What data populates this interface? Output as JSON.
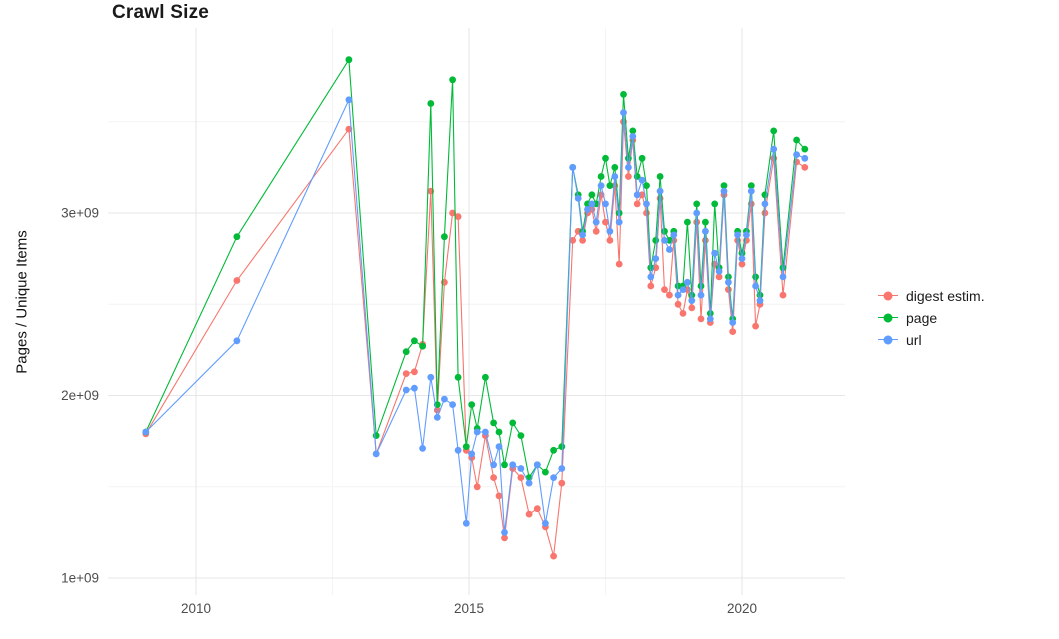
{
  "title": "Crawl Size",
  "background_color": "#ffffff",
  "grid_major_color": "#e7e7e7",
  "grid_minor_color": "#f3f3f3",
  "tick_label_color": "#4d4d4d",
  "y_axis": {
    "label": "Pages / Unique Items",
    "tick_labels": [
      "1e+09",
      "2e+09",
      "3e+09"
    ],
    "tick_values": [
      1,
      2,
      3
    ]
  },
  "x_axis": {
    "label": "",
    "tick_labels": [
      "2010",
      "2015",
      "2020"
    ],
    "tick_values": [
      2010,
      2015,
      2020
    ]
  },
  "legend": {
    "items": [
      {
        "label": "digest estim.",
        "color": "#F8766D"
      },
      {
        "label": "page",
        "color": "#00BA38"
      },
      {
        "label": "url",
        "color": "#619CFF"
      }
    ]
  },
  "chart_data": {
    "type": "line",
    "title": "Crawl Size",
    "xlabel": "",
    "ylabel": "Pages / Unique Items",
    "y_unit": "1e9 (values below are in billions of pages / unique items)",
    "xlim": [
      2008.4,
      2021.9
    ],
    "ylim": [
      0.9,
      4.0
    ],
    "grid": true,
    "legend_position": "right",
    "x": [
      2009.08,
      2010.75,
      2012.8,
      2013.3,
      2013.85,
      2014.0,
      2014.15,
      2014.3,
      2014.42,
      2014.55,
      2014.7,
      2014.8,
      2014.95,
      2015.05,
      2015.15,
      2015.3,
      2015.45,
      2015.55,
      2015.65,
      2015.8,
      2015.95,
      2016.1,
      2016.25,
      2016.4,
      2016.55,
      2016.7,
      2016.9,
      2017.0,
      2017.08,
      2017.17,
      2017.25,
      2017.33,
      2017.42,
      2017.5,
      2017.58,
      2017.67,
      2017.75,
      2017.83,
      2017.92,
      2018.0,
      2018.08,
      2018.17,
      2018.25,
      2018.33,
      2018.42,
      2018.5,
      2018.58,
      2018.67,
      2018.75,
      2018.83,
      2018.92,
      2019.0,
      2019.08,
      2019.17,
      2019.25,
      2019.33,
      2019.42,
      2019.5,
      2019.58,
      2019.67,
      2019.75,
      2019.83,
      2019.92,
      2020.0,
      2020.08,
      2020.17,
      2020.25,
      2020.33,
      2020.42,
      2020.58,
      2020.75,
      2021.0,
      2021.15
    ],
    "series": [
      {
        "name": "digest estim.",
        "color": "#F8766D",
        "values": [
          1.79,
          2.63,
          3.46,
          1.68,
          2.12,
          2.13,
          2.28,
          3.12,
          1.92,
          2.62,
          3.0,
          2.98,
          1.7,
          1.66,
          1.5,
          1.78,
          1.55,
          1.45,
          1.22,
          1.6,
          1.55,
          1.35,
          1.38,
          1.28,
          1.12,
          1.52,
          2.85,
          2.9,
          2.85,
          3.0,
          3.02,
          2.9,
          3.1,
          2.95,
          2.85,
          3.15,
          2.72,
          3.5,
          3.2,
          3.4,
          3.05,
          3.1,
          3.0,
          2.6,
          2.7,
          3.08,
          2.58,
          2.55,
          2.85,
          2.5,
          2.45,
          2.58,
          2.48,
          2.95,
          2.42,
          2.85,
          2.4,
          2.72,
          2.65,
          3.1,
          2.58,
          2.35,
          2.85,
          2.72,
          2.85,
          3.05,
          2.38,
          2.5,
          3.0,
          3.3,
          2.55,
          3.28,
          3.25
        ]
      },
      {
        "name": "page",
        "color": "#00BA38",
        "values": [
          1.8,
          2.87,
          3.84,
          1.78,
          2.24,
          2.3,
          2.27,
          3.6,
          1.95,
          2.87,
          3.73,
          2.1,
          1.72,
          1.95,
          1.82,
          2.1,
          1.85,
          1.8,
          1.62,
          1.85,
          1.78,
          1.55,
          1.62,
          1.58,
          1.7,
          1.72,
          3.25,
          3.1,
          2.9,
          3.05,
          3.1,
          3.05,
          3.2,
          3.3,
          3.15,
          3.25,
          3.0,
          3.65,
          3.3,
          3.45,
          3.2,
          3.3,
          3.15,
          2.7,
          2.85,
          3.2,
          2.9,
          2.85,
          2.9,
          2.6,
          2.6,
          2.95,
          2.55,
          3.05,
          2.6,
          2.95,
          2.45,
          3.05,
          2.7,
          3.15,
          2.65,
          2.42,
          2.9,
          2.78,
          2.9,
          3.15,
          2.65,
          2.55,
          3.1,
          3.45,
          2.7,
          3.4,
          3.35
        ]
      },
      {
        "name": "url",
        "color": "#619CFF",
        "values": [
          1.8,
          2.3,
          3.62,
          1.68,
          2.03,
          2.04,
          1.71,
          2.1,
          1.88,
          1.98,
          1.95,
          1.7,
          1.3,
          1.68,
          1.8,
          1.8,
          1.62,
          1.72,
          1.25,
          1.62,
          1.6,
          1.52,
          1.62,
          1.3,
          1.55,
          1.6,
          3.25,
          3.08,
          2.88,
          3.02,
          3.05,
          2.95,
          3.15,
          3.05,
          2.9,
          3.2,
          2.95,
          3.55,
          3.25,
          3.42,
          3.1,
          3.18,
          3.05,
          2.65,
          2.75,
          3.12,
          2.85,
          2.8,
          2.88,
          2.55,
          2.58,
          2.62,
          2.52,
          3.0,
          2.55,
          2.9,
          2.42,
          2.78,
          2.68,
          3.12,
          2.62,
          2.4,
          2.88,
          2.75,
          2.88,
          3.12,
          2.6,
          2.52,
          3.05,
          3.35,
          2.65,
          3.32,
          3.3
        ]
      }
    ]
  }
}
